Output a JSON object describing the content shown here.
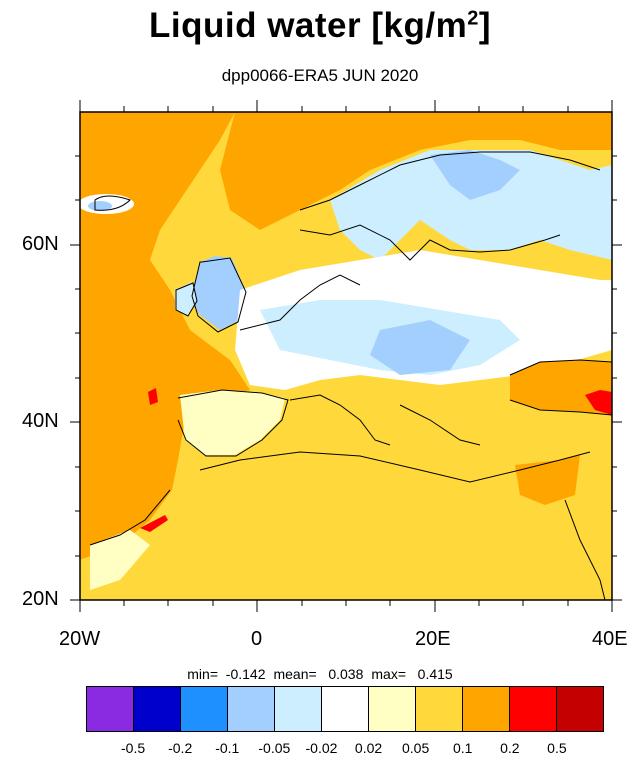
{
  "title": "Liquid water  [kg/m",
  "title_sup": "2",
  "title_end": "]",
  "subtitle": "dpp0066-ERA5 JUN 2020",
  "axes": {
    "y_labels": [
      "60N",
      "40N",
      "20N"
    ],
    "x_labels": [
      "20W",
      "0",
      "20E",
      "40E"
    ]
  },
  "stats": {
    "min": "min=  -0.142",
    "mean": "mean=   0.038",
    "max": "max=   0.415"
  },
  "colorbar": {
    "colors": [
      "#8a2be2",
      "#0000cd",
      "#1e90ff",
      "#a3cfff",
      "#cceeff",
      "#ffffff",
      "#ffffc4",
      "#ffd93b",
      "#ffa500",
      "#ff0000",
      "#c40000"
    ],
    "labels": [
      "-0.5",
      "-0.2",
      "-0.1",
      "-0.05",
      "-0.02",
      "0.02",
      "0.05",
      "0.1",
      "0.2",
      "0.5"
    ]
  },
  "map": {
    "region": "Europe / North Africa",
    "lon_range": [
      -20,
      40
    ],
    "lat_range": [
      20,
      75
    ]
  }
}
